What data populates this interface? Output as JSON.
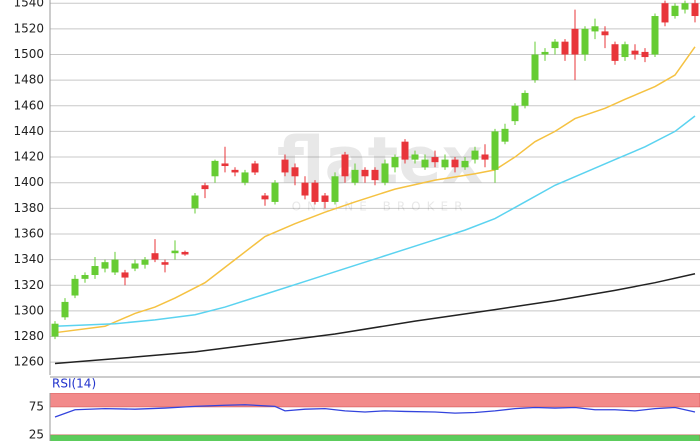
{
  "chart_data": [
    {
      "type": "candlestick",
      "open": [
        1280,
        1295,
        1312,
        1325,
        1328,
        1333,
        1330,
        1330,
        1333,
        1336,
        1345,
        1338,
        1345,
        1346,
        1380,
        1398,
        1405,
        1415,
        1410,
        1400,
        1415,
        1390,
        1385,
        1418,
        1412,
        1400,
        1400,
        1390,
        1385,
        1422,
        1400,
        1410,
        1410,
        1400,
        1412,
        1432,
        1418,
        1412,
        1420,
        1412,
        1418,
        1412,
        1418,
        1422,
        1410,
        1432,
        1448,
        1460,
        1480,
        1500,
        1505,
        1510,
        1520,
        1500,
        1518,
        1518,
        1508,
        1498,
        1503,
        1502,
        1500,
        1540,
        1530,
        1535,
        1540
      ],
      "high": [
        1292,
        1310,
        1328,
        1330,
        1342,
        1340,
        1346,
        1332,
        1340,
        1342,
        1356,
        1340,
        1355,
        1347,
        1392,
        1400,
        1418,
        1428,
        1412,
        1410,
        1417,
        1392,
        1402,
        1422,
        1415,
        1405,
        1402,
        1392,
        1408,
        1424,
        1415,
        1412,
        1412,
        1418,
        1422,
        1434,
        1425,
        1422,
        1425,
        1422,
        1420,
        1420,
        1428,
        1430,
        1442,
        1446,
        1462,
        1472,
        1510,
        1505,
        1512,
        1512,
        1535,
        1522,
        1528,
        1522,
        1510,
        1510,
        1508,
        1505,
        1532,
        1542,
        1540,
        1542,
        1543
      ],
      "low": [
        1278,
        1293,
        1310,
        1322,
        1325,
        1330,
        1328,
        1320,
        1331,
        1333,
        1338,
        1330,
        1340,
        1343,
        1376,
        1388,
        1400,
        1408,
        1405,
        1398,
        1406,
        1382,
        1383,
        1405,
        1398,
        1387,
        1383,
        1380,
        1383,
        1400,
        1398,
        1400,
        1398,
        1398,
        1408,
        1415,
        1415,
        1410,
        1412,
        1410,
        1408,
        1410,
        1415,
        1412,
        1400,
        1430,
        1445,
        1458,
        1478,
        1495,
        1500,
        1495,
        1480,
        1495,
        1512,
        1505,
        1492,
        1495,
        1496,
        1494,
        1498,
        1522,
        1528,
        1532,
        1525
      ],
      "close": [
        1290,
        1307,
        1325,
        1328,
        1335,
        1338,
        1340,
        1326,
        1337,
        1340,
        1340,
        1336,
        1347,
        1344,
        1390,
        1395,
        1417,
        1413,
        1408,
        1408,
        1408,
        1387,
        1400,
        1408,
        1405,
        1390,
        1385,
        1385,
        1405,
        1405,
        1410,
        1405,
        1402,
        1415,
        1420,
        1418,
        1422,
        1418,
        1416,
        1418,
        1412,
        1417,
        1425,
        1418,
        1440,
        1442,
        1460,
        1470,
        1500,
        1502,
        1510,
        1500,
        1500,
        1520,
        1522,
        1515,
        1495,
        1508,
        1500,
        1498,
        1530,
        1525,
        1538,
        1540,
        1530
      ],
      "up_color": "#66cc33",
      "down_color": "#e8353a",
      "overlays": [
        {
          "color": "#f5c242",
          "x": [
            0,
            5,
            8,
            10,
            12,
            15,
            18,
            21,
            24,
            27,
            30,
            34,
            38,
            42,
            44,
            46,
            48,
            50,
            52,
            55,
            57,
            60,
            62,
            64
          ],
          "values": [
            1283,
            1288,
            1298,
            1303,
            1310,
            1322,
            1340,
            1358,
            1368,
            1377,
            1385,
            1395,
            1402,
            1407,
            1410,
            1420,
            1432,
            1440,
            1450,
            1458,
            1465,
            1475,
            1484,
            1506
          ]
        },
        {
          "color": "#5bd3f0",
          "x": [
            0,
            6,
            10,
            14,
            17,
            21,
            25,
            29,
            33,
            37,
            41,
            44,
            47,
            50,
            53,
            56,
            59,
            62,
            64
          ],
          "values": [
            1288,
            1290,
            1293,
            1297,
            1303,
            1313,
            1323,
            1333,
            1343,
            1353,
            1363,
            1372,
            1385,
            1398,
            1408,
            1418,
            1428,
            1440,
            1452
          ]
        },
        {
          "color": "#222222",
          "x": [
            0,
            8,
            14,
            20,
            28,
            36,
            44,
            50,
            56,
            60,
            64
          ],
          "values": [
            1259,
            1264,
            1268,
            1274,
            1282,
            1292,
            1301,
            1308,
            1316,
            1322,
            1329
          ]
        }
      ],
      "ylim": [
        1250,
        1542.5
      ],
      "yticks": [
        1260,
        1280,
        1300,
        1320,
        1340,
        1360,
        1380,
        1400,
        1420,
        1440,
        1460,
        1480,
        1500,
        1520,
        1540
      ],
      "grid": true,
      "watermark": [
        "flatex",
        "ONLINE BROKER"
      ]
    },
    {
      "type": "line",
      "title": "RSI(14)",
      "color": "#3344dd",
      "x": [
        0,
        2,
        5,
        8,
        11,
        14,
        17,
        19,
        22,
        23,
        25,
        27,
        29,
        31,
        33,
        35,
        38,
        40,
        42,
        44,
        46,
        48,
        50,
        52,
        54,
        56,
        58,
        60,
        62,
        64
      ],
      "values": [
        57,
        70,
        72,
        71,
        73,
        76,
        78,
        79,
        76,
        68,
        71,
        72,
        68,
        66,
        68,
        67,
        66,
        64,
        65,
        68,
        72,
        74,
        73,
        74,
        70,
        70,
        68,
        72,
        74,
        66
      ],
      "ylim": [
        14,
        100
      ],
      "yticks": [
        25,
        75
      ],
      "bands": [
        {
          "from": 75,
          "to": 100,
          "color": "#f28a8a"
        },
        {
          "from": 0,
          "to": 25,
          "color": "#5ccc5c"
        }
      ]
    }
  ]
}
